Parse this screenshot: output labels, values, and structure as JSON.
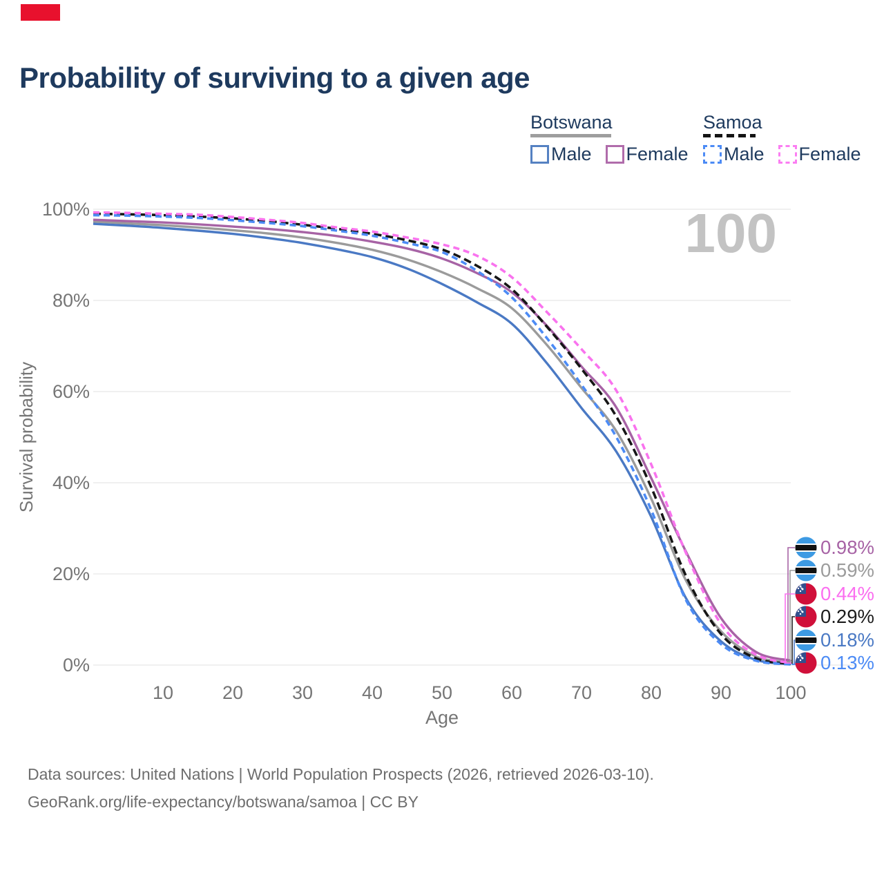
{
  "marker_color": "#e8112d",
  "title": "Probability of surviving to a given age",
  "watermark": "100",
  "legend": {
    "groups": [
      {
        "label": "Botswana",
        "rule_style": "solid",
        "rule_color": "#9e9e9e",
        "items": [
          {
            "label": "Male",
            "box_color": "#5581c2",
            "dashed": false
          },
          {
            "label": "Female",
            "box_color": "#b06cab",
            "dashed": false
          }
        ]
      },
      {
        "label": "Samoa",
        "rule_style": "dashed",
        "rule_color": "#141414",
        "items": [
          {
            "label": "Male",
            "box_color": "#4c8bf5",
            "dashed": true
          },
          {
            "label": "Female",
            "box_color": "#fb7ef2",
            "dashed": true
          }
        ]
      }
    ]
  },
  "footer": {
    "line1": "Data sources: United Nations | World Population Prospects (2026, retrieved 2026-03-10).",
    "line2": "GeoRank.org/life-expectancy/botswana/samoa | CC BY"
  },
  "chart_data": {
    "type": "line",
    "title": "Probability of surviving to a given age",
    "xlabel": "Age",
    "ylabel": "Survival probability",
    "xlim": [
      0,
      100
    ],
    "ylim": [
      0,
      100
    ],
    "grid": "horizontal",
    "legend_position": "top-right",
    "x_ticks": [
      10,
      20,
      30,
      40,
      50,
      60,
      70,
      80,
      90,
      100
    ],
    "y_ticks": [
      {
        "value": 0,
        "label": "0%"
      },
      {
        "value": 20,
        "label": "20%"
      },
      {
        "value": 40,
        "label": "40%"
      },
      {
        "value": 60,
        "label": "60%"
      },
      {
        "value": 80,
        "label": "80%"
      },
      {
        "value": 100,
        "label": "100%"
      }
    ],
    "ages": [
      0,
      5,
      10,
      15,
      20,
      25,
      30,
      35,
      40,
      45,
      50,
      55,
      60,
      65,
      70,
      75,
      80,
      85,
      90,
      95,
      100
    ],
    "series": [
      {
        "name": "Botswana (all)",
        "country": "Botswana",
        "sex": "all",
        "color": "#9b9b9b",
        "dashed": false,
        "values": [
          97.3,
          96.9,
          96.5,
          96.0,
          95.4,
          94.7,
          93.8,
          92.6,
          91.1,
          89.0,
          86.2,
          82.7,
          78.3,
          70.3,
          60.8,
          51.3,
          36.5,
          18.5,
          7.4,
          1.9,
          0.59
        ]
      },
      {
        "name": "Botswana Female",
        "country": "Botswana",
        "sex": "female",
        "color": "#a763a5",
        "dashed": false,
        "values": [
          97.7,
          97.4,
          97.1,
          96.7,
          96.2,
          95.7,
          95.0,
          94.1,
          92.9,
          91.4,
          89.2,
          86.0,
          81.8,
          74.5,
          65.5,
          56.5,
          41.0,
          24.8,
          10.3,
          2.9,
          0.98
        ]
      },
      {
        "name": "Botswana Male",
        "country": "Botswana",
        "sex": "male",
        "color": "#4a79c4",
        "dashed": false,
        "values": [
          96.8,
          96.4,
          95.9,
          95.3,
          94.6,
          93.7,
          92.6,
          91.2,
          89.5,
          87.0,
          83.6,
          79.6,
          74.9,
          66.3,
          56.4,
          46.8,
          32.5,
          14.6,
          5.2,
          1.15,
          0.18
        ]
      },
      {
        "name": "Samoa (all)",
        "country": "Samoa",
        "sex": "all",
        "color": "#161616",
        "dashed": true,
        "values": [
          99.0,
          98.9,
          98.7,
          98.4,
          98.0,
          97.4,
          96.6,
          95.7,
          94.6,
          93.2,
          91.2,
          87.6,
          82.5,
          74.3,
          65.0,
          54.5,
          39.0,
          19.5,
          6.8,
          1.5,
          0.29
        ]
      },
      {
        "name": "Samoa Male",
        "country": "Samoa",
        "sex": "male",
        "color": "#4c8bf5",
        "dashed": true,
        "values": [
          98.7,
          98.6,
          98.4,
          98.1,
          97.6,
          97.0,
          96.3,
          95.3,
          94.2,
          92.6,
          90.6,
          86.5,
          80.7,
          71.8,
          61.5,
          50.0,
          34.0,
          14.2,
          4.6,
          0.95,
          0.13
        ]
      },
      {
        "name": "Samoa Female",
        "country": "Samoa",
        "sex": "female",
        "color": "#f973ee",
        "dashed": true,
        "values": [
          99.3,
          99.2,
          99.0,
          98.8,
          98.3,
          97.7,
          97.0,
          96.0,
          95.1,
          93.8,
          92.3,
          89.8,
          85.1,
          77.5,
          69.3,
          60.2,
          44.0,
          24.5,
          9.0,
          2.3,
          0.44
        ]
      }
    ],
    "end_labels": [
      {
        "series": "Botswana Female",
        "value": "0.98%",
        "color": "#a763a5",
        "flag": "botswana"
      },
      {
        "series": "Botswana (all)",
        "value": "0.59%",
        "color": "#9b9b9b",
        "flag": "botswana"
      },
      {
        "series": "Samoa Female",
        "value": "0.44%",
        "color": "#fb6ef0",
        "flag": "samoa"
      },
      {
        "series": "Samoa (all)",
        "value": "0.29%",
        "color": "#1c1c1c",
        "flag": "samoa"
      },
      {
        "series": "Botswana Male",
        "value": "0.18%",
        "color": "#4a79c4",
        "flag": "botswana"
      },
      {
        "series": "Samoa Male",
        "value": "0.13%",
        "color": "#4c8bf5",
        "flag": "samoa"
      }
    ]
  }
}
